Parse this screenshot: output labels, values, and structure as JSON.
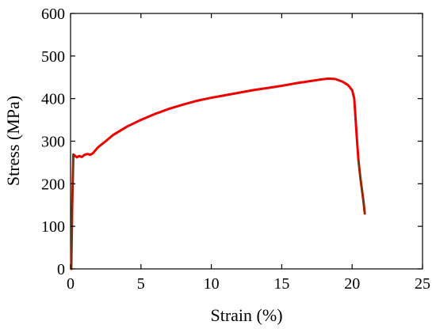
{
  "chart_data": {
    "type": "line",
    "title": "",
    "xlabel": "Strain (%)",
    "ylabel": "Stress (MPa)",
    "xlim": [
      0,
      25
    ],
    "ylim": [
      0,
      600
    ],
    "xticks": [
      0,
      5,
      10,
      15,
      20,
      25
    ],
    "yticks": [
      0,
      100,
      200,
      300,
      400,
      500,
      600
    ],
    "grid": false,
    "legend": "none",
    "series": [
      {
        "color": "#ee0000",
        "x": [
          0.05,
          0.12,
          0.2,
          0.3,
          0.45,
          0.6,
          0.8,
          1.0,
          1.2,
          1.4,
          1.6,
          1.8,
          2.0,
          2.5,
          3.0,
          4.0,
          5.0,
          6.0,
          7.0,
          8.0,
          9.0,
          10.0,
          11.0,
          12.0,
          13.0,
          14.0,
          15.0,
          16.0,
          17.0,
          17.8,
          18.3,
          18.8,
          19.3,
          19.7,
          20.0,
          20.15,
          20.25,
          20.35,
          20.45,
          20.6,
          20.8,
          20.9
        ],
        "y": [
          0,
          150,
          269,
          266,
          262,
          265,
          263,
          268,
          270,
          268,
          272,
          280,
          287,
          300,
          314,
          334,
          350,
          364,
          376,
          386,
          395,
          402,
          408,
          414,
          420,
          425,
          430,
          436,
          441,
          445,
          447,
          446,
          440,
          432,
          420,
          400,
          350,
          300,
          255,
          210,
          160,
          130
        ]
      }
    ],
    "axis_color": "#000000",
    "elastic_color": "#6b3a0a"
  }
}
